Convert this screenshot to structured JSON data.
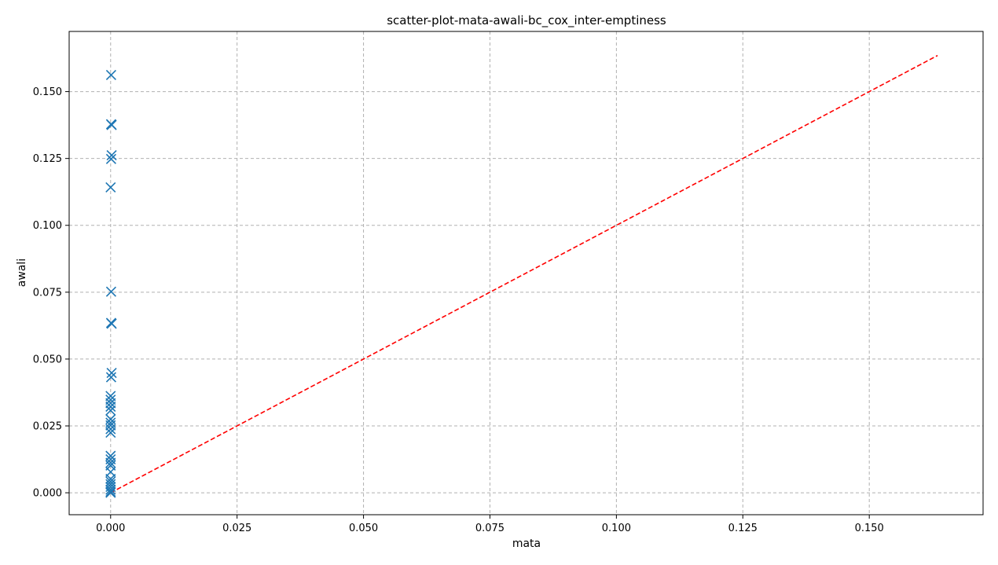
{
  "chart_data": {
    "type": "scatter",
    "title": "scatter-plot-mata-awali-bc_cox_inter-emptiness",
    "xlabel": "mata",
    "ylabel": "awali",
    "xlim": [
      -0.0082,
      0.1725
    ],
    "ylim": [
      -0.0082,
      0.1725
    ],
    "xticks": [
      0.0,
      0.025,
      0.05,
      0.075,
      0.1,
      0.125,
      0.15
    ],
    "yticks": [
      0.0,
      0.025,
      0.05,
      0.075,
      0.1,
      0.125,
      0.15
    ],
    "xtick_labels": [
      "0.000",
      "0.025",
      "0.050",
      "0.075",
      "0.100",
      "0.125",
      "0.150"
    ],
    "ytick_labels": [
      "0.000",
      "0.025",
      "0.050",
      "0.075",
      "0.100",
      "0.125",
      "0.150"
    ],
    "grid": true,
    "marker": "x",
    "colors": {
      "points": "#1f77b4",
      "reference_line": "#ff0000"
    },
    "points": [
      {
        "x": 0.0001,
        "y": 0.1562
      },
      {
        "x": 0.0001,
        "y": 0.1378
      },
      {
        "x": 0.0002,
        "y": 0.1375
      },
      {
        "x": 0.0002,
        "y": 0.1262
      },
      {
        "x": 0.0001,
        "y": 0.1248
      },
      {
        "x": 0.0,
        "y": 0.1142
      },
      {
        "x": 0.0001,
        "y": 0.0752
      },
      {
        "x": 0.0001,
        "y": 0.0635
      },
      {
        "x": 0.0002,
        "y": 0.0632
      },
      {
        "x": 0.0002,
        "y": 0.0448
      },
      {
        "x": 0.0001,
        "y": 0.0432
      },
      {
        "x": 0.0,
        "y": 0.0362
      },
      {
        "x": 0.0,
        "y": 0.0348
      },
      {
        "x": 0.0,
        "y": 0.0335
      },
      {
        "x": 0.0,
        "y": 0.0322
      },
      {
        "x": 0.0,
        "y": 0.0308
      },
      {
        "x": 0.0,
        "y": 0.0275
      },
      {
        "x": 0.0,
        "y": 0.0262
      },
      {
        "x": 0.0,
        "y": 0.0252
      },
      {
        "x": 0.0,
        "y": 0.0238
      },
      {
        "x": 0.0,
        "y": 0.0225
      },
      {
        "x": 0.0,
        "y": 0.0138
      },
      {
        "x": 0.0,
        "y": 0.0125
      },
      {
        "x": 0.0,
        "y": 0.0112
      },
      {
        "x": 0.0,
        "y": 0.0102
      },
      {
        "x": 0.0,
        "y": 0.0078
      },
      {
        "x": 0.0,
        "y": 0.0052
      },
      {
        "x": 0.0,
        "y": 0.0042
      },
      {
        "x": 0.0,
        "y": 0.0032
      },
      {
        "x": 0.0,
        "y": 0.0022
      },
      {
        "x": 0.0,
        "y": 0.0012
      },
      {
        "x": 0.0,
        "y": 0.0004
      },
      {
        "x": 0.0,
        "y": 0.0
      }
    ],
    "reference_line": {
      "style": "dashed",
      "from": [
        0.0,
        0.0
      ],
      "to": [
        0.1635,
        0.1635
      ]
    }
  }
}
